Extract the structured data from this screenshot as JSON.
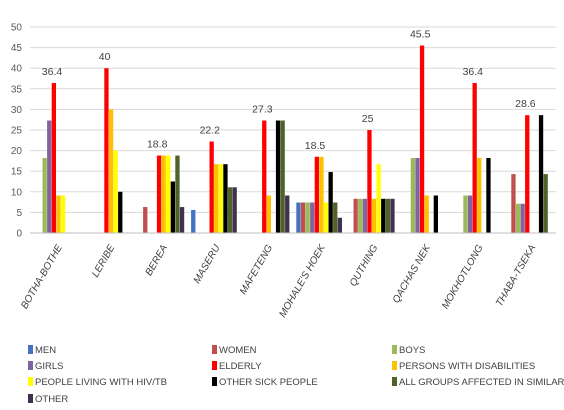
{
  "chart_data": {
    "type": "bar",
    "ylim": [
      0,
      50
    ],
    "yticks": [
      0,
      5,
      10,
      15,
      20,
      25,
      30,
      35,
      40,
      45,
      50
    ],
    "grid": "horizontal",
    "legend_position": "bottom",
    "categories": [
      "BOTHA-BOTHE",
      "LERIBE",
      "BEREA",
      "MASERU",
      "MAFETENG",
      "MOHALE'S HOEK",
      "QUTHING",
      "QACHAS NEK",
      "MOKHOTLONG",
      "THABA-TSEKA"
    ],
    "series": [
      {
        "name": "MEN",
        "color": "#4472c4",
        "values": [
          0,
          0,
          0,
          5.6,
          0,
          7.4,
          0,
          0,
          0,
          0
        ]
      },
      {
        "name": "WOMEN",
        "color": "#c0504d",
        "values": [
          0,
          0,
          6.3,
          0,
          0,
          7.4,
          8.3,
          0,
          0,
          14.3
        ]
      },
      {
        "name": "BOYS",
        "color": "#9bbb59",
        "values": [
          18.2,
          0,
          0,
          0,
          0,
          7.4,
          8.3,
          18.2,
          9.1,
          7.1
        ]
      },
      {
        "name": "GIRLS",
        "color": "#8064a2",
        "values": [
          27.3,
          0,
          0,
          0,
          0,
          7.4,
          8.3,
          18.2,
          9.1,
          7.1
        ]
      },
      {
        "name": "ELDERLY",
        "color": "#ff0000",
        "values": [
          36.4,
          40,
          18.8,
          22.2,
          27.3,
          18.5,
          25,
          45.5,
          36.4,
          28.6
        ]
      },
      {
        "name": "PERSONS WITH DISABILITIES",
        "color": "#ffc000",
        "values": [
          9.1,
          30,
          18.8,
          16.7,
          9.1,
          18.5,
          8.3,
          9.1,
          18.2,
          0
        ]
      },
      {
        "name": "PEOPLE LIVING WITH HIV/TB",
        "color": "#ffff00",
        "values": [
          9.1,
          20,
          18.8,
          16.7,
          0,
          7.4,
          16.7,
          0,
          0,
          0
        ]
      },
      {
        "name": "OTHER SICK PEOPLE",
        "color": "#000000",
        "values": [
          0,
          10,
          12.5,
          16.7,
          27.3,
          14.8,
          8.3,
          9.1,
          18.2,
          28.6
        ]
      },
      {
        "name": "ALL GROUPS AFFECTED IN SIMILAR WAY",
        "color": "#4f6228",
        "values": [
          0,
          0,
          18.8,
          11.1,
          27.3,
          7.4,
          8.3,
          0,
          0,
          14.3
        ]
      },
      {
        "name": "OTHER",
        "color": "#403151",
        "values": [
          0,
          0,
          6.3,
          11.1,
          9.1,
          3.7,
          8.3,
          0,
          0,
          0
        ]
      }
    ],
    "data_labels": [
      {
        "category": "BOTHA-BOTHE",
        "value": 36.4,
        "text": "36.4"
      },
      {
        "category": "LERIBE",
        "value": 40,
        "text": "40"
      },
      {
        "category": "BEREA",
        "value": 18.8,
        "text": "18.8"
      },
      {
        "category": "MASERU",
        "value": 22.2,
        "text": "22.2"
      },
      {
        "category": "MAFETENG",
        "value": 27.3,
        "text": "27.3"
      },
      {
        "category": "MOHALE'S HOEK",
        "value": 18.5,
        "text": "18.5"
      },
      {
        "category": "QUTHING",
        "value": 25,
        "text": "25"
      },
      {
        "category": "QACHAS NEK",
        "value": 45.5,
        "text": "45.5"
      },
      {
        "category": "MOKHOTLONG",
        "value": 36.4,
        "text": "36.4"
      },
      {
        "category": "THABA-TSEKA",
        "value": 28.6,
        "text": "28.6"
      }
    ]
  }
}
